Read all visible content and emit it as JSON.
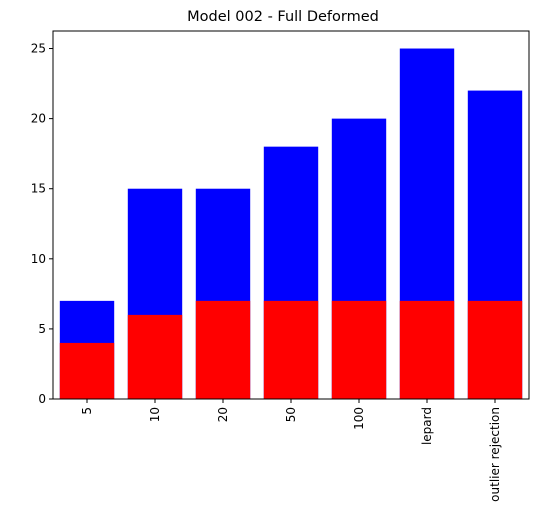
{
  "chart_data": {
    "type": "bar",
    "title": "Model 002 - Full Deformed",
    "xlabel": "",
    "ylabel": "",
    "categories": [
      "5",
      "10",
      "20",
      "50",
      "100",
      "lepard",
      "outlier rejection"
    ],
    "series": [
      {
        "values": [
          7,
          15,
          15,
          18,
          20,
          25,
          22
        ],
        "color": "#0000ff"
      },
      {
        "values": [
          4,
          6,
          7,
          7,
          7,
          7,
          7
        ],
        "color": "#ff0000"
      }
    ],
    "yticks": [
      0,
      5,
      10,
      15,
      20,
      25
    ],
    "ylim": [
      0,
      26.25
    ],
    "grid": false,
    "x_tick_rotation": "vertical"
  }
}
